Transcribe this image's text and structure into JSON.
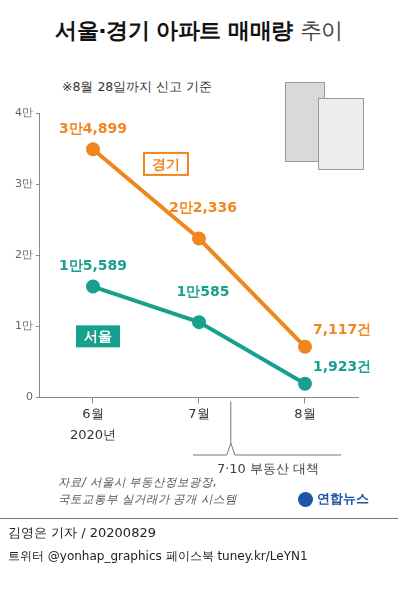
{
  "chart_data": {
    "type": "line",
    "title": "서울·경기 아파트 매매량 추이",
    "subtitle": "※8월 28일까지 신고 기준",
    "categories": [
      "6월",
      "7월",
      "8월"
    ],
    "category_note": "2020년",
    "annotation": "7·10 부동산 대책",
    "series": [
      {
        "name": "경기",
        "color": "#f0861e",
        "values": [
          34899,
          22336,
          7117
        ],
        "value_labels": [
          "3만4,899",
          "2만2,336",
          "7,117건"
        ]
      },
      {
        "name": "서울",
        "color": "#17a08e",
        "values": [
          15589,
          10585,
          1923
        ],
        "value_labels": [
          "1만5,589",
          "1만585",
          "1,923건"
        ]
      }
    ],
    "ylim": [
      0,
      40000
    ],
    "yticks": [
      0,
      {
        "value": 10000,
        "label": "1만"
      },
      {
        "value": 20000,
        "label": "2만"
      },
      {
        "value": 30000,
        "label": "3만"
      },
      {
        "value": 40000,
        "label": "4만"
      }
    ],
    "grid": false,
    "data_labels": true,
    "marker": "circle",
    "source": [
      "자료/ 서울시 부동산정보광장,",
      "국토교통부 실거래가 공개 시스템"
    ],
    "logo": "연합뉴스",
    "credit": "김영은 기자 / 20200829",
    "social": "트위터 @yonhap_graphics  페이스북 tuney.kr/LeYN1"
  }
}
